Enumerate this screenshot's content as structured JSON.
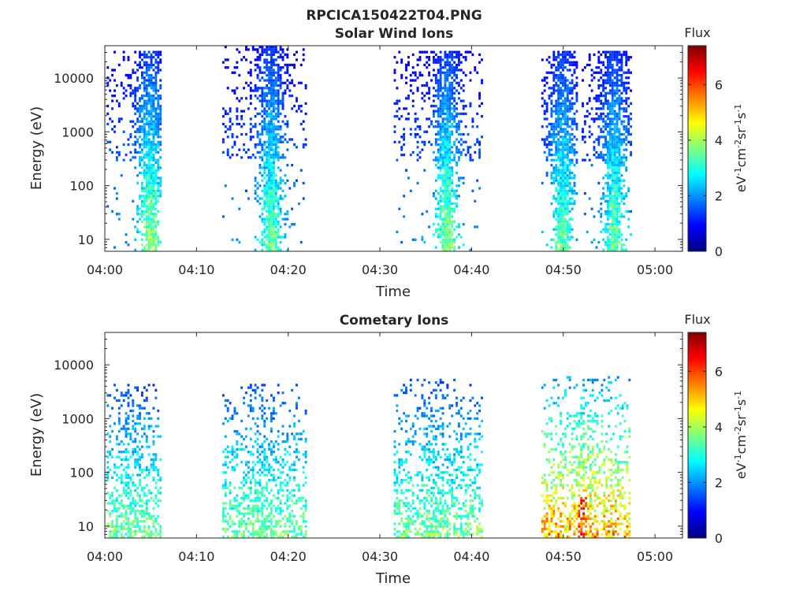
{
  "figure_title": "RPCICA150422T04.PNG",
  "colormap": {
    "name": "jet",
    "stops": [
      "#00007f",
      "#0000ff",
      "#007fff",
      "#00ffff",
      "#7fff7f",
      "#ffff00",
      "#ff7f00",
      "#ff0000",
      "#7f0000"
    ]
  },
  "chart_data": [
    {
      "type": "heatmap",
      "title": "Solar Wind Ions",
      "xlabel": "Time",
      "ylabel": "Energy (eV)",
      "x_ticks": [
        "04:00",
        "04:10",
        "04:20",
        "04:30",
        "04:40",
        "04:50",
        "05:00"
      ],
      "x_tick_minutes": [
        0,
        10,
        20,
        30,
        40,
        50,
        60
      ],
      "xlim_minutes": [
        0,
        63
      ],
      "y_scale": "log",
      "y_ticks": [
        "10",
        "100",
        "1000",
        "10000"
      ],
      "y_tick_values": [
        10,
        100,
        1000,
        10000
      ],
      "ylim": [
        6,
        40000
      ],
      "colorbar": {
        "label": "Flux",
        "unit_base": "eV",
        "ticks": [
          "0",
          "2",
          "4",
          "6"
        ],
        "tick_values": [
          0,
          2,
          4,
          6
        ],
        "range": [
          0,
          7.4
        ]
      },
      "bursts": [
        {
          "start_min": 0.2,
          "end_min": 6.0,
          "core_min": 4.8,
          "e_low": 6,
          "e_high": 30000,
          "peak_flux": 3.9
        },
        {
          "start_min": 12.8,
          "end_min": 22.0,
          "core_min": 18.0,
          "e_low": 6,
          "e_high": 36000,
          "peak_flux": 3.6
        },
        {
          "start_min": 31.5,
          "end_min": 41.2,
          "core_min": 37.2,
          "e_low": 6,
          "e_high": 30000,
          "peak_flux": 3.8
        },
        {
          "start_min": 47.6,
          "end_min": 51.5,
          "core_min": 49.8,
          "e_low": 6,
          "e_high": 30000,
          "peak_flux": 3.6
        },
        {
          "start_min": 52.0,
          "end_min": 57.3,
          "core_min": 55.5,
          "e_low": 6,
          "e_high": 30000,
          "peak_flux": 3.6
        }
      ]
    },
    {
      "type": "heatmap",
      "title": "Cometary Ions",
      "xlabel": "Time",
      "ylabel": "Energy (eV)",
      "x_ticks": [
        "04:00",
        "04:10",
        "04:20",
        "04:30",
        "04:40",
        "04:50",
        "05:00"
      ],
      "x_tick_minutes": [
        0,
        10,
        20,
        30,
        40,
        50,
        60
      ],
      "xlim_minutes": [
        0,
        63
      ],
      "y_scale": "log",
      "y_ticks": [
        "10",
        "100",
        "1000",
        "10000"
      ],
      "y_tick_values": [
        10,
        100,
        1000,
        10000
      ],
      "ylim": [
        6,
        40000
      ],
      "colorbar": {
        "label": "Flux",
        "unit_base": "eV",
        "ticks": [
          "0",
          "2",
          "4",
          "6"
        ],
        "tick_values": [
          0,
          2,
          4,
          6
        ],
        "range": [
          0,
          7.4
        ]
      },
      "bursts": [
        {
          "start_min": 0.2,
          "end_min": 6.0,
          "core_min": 3.0,
          "e_low": 6,
          "e_high": 4000,
          "peak_flux": 3.6
        },
        {
          "start_min": 12.8,
          "end_min": 22.0,
          "core_min": 17.0,
          "e_low": 6,
          "e_high": 4000,
          "peak_flux": 3.6
        },
        {
          "start_min": 31.5,
          "end_min": 41.2,
          "core_min": 36.0,
          "e_low": 6,
          "e_high": 5000,
          "peak_flux": 3.6
        },
        {
          "start_min": 47.6,
          "end_min": 57.3,
          "core_min": 52.0,
          "e_low": 6,
          "e_high": 6000,
          "peak_flux": 5.2
        }
      ]
    }
  ]
}
